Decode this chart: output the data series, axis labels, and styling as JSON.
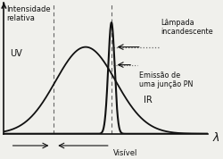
{
  "ylabel": "Intensidade\nrelativa",
  "xlabel": "λ",
  "label_lampada": "Lâmpada\nincandescente",
  "label_emissao": "Emissão de\numa junção PN",
  "label_uv": "UV",
  "label_visivel": "Visível",
  "label_ir": "IR",
  "background": "#f0f0ec",
  "curve_color": "#111111",
  "dashed_color": "#666666",
  "lamp_peak": 0.38,
  "lamp_sigma": 0.14,
  "lamp_amp": 0.78,
  "pn_peak": 0.5,
  "pn_sigma": 0.015,
  "pn_amp": 1.0,
  "uv_boundary": 0.23,
  "vis_boundary": 0.5,
  "xmin": 0.0,
  "xmax": 0.95,
  "ymin": 0.0,
  "ymax": 1.18
}
